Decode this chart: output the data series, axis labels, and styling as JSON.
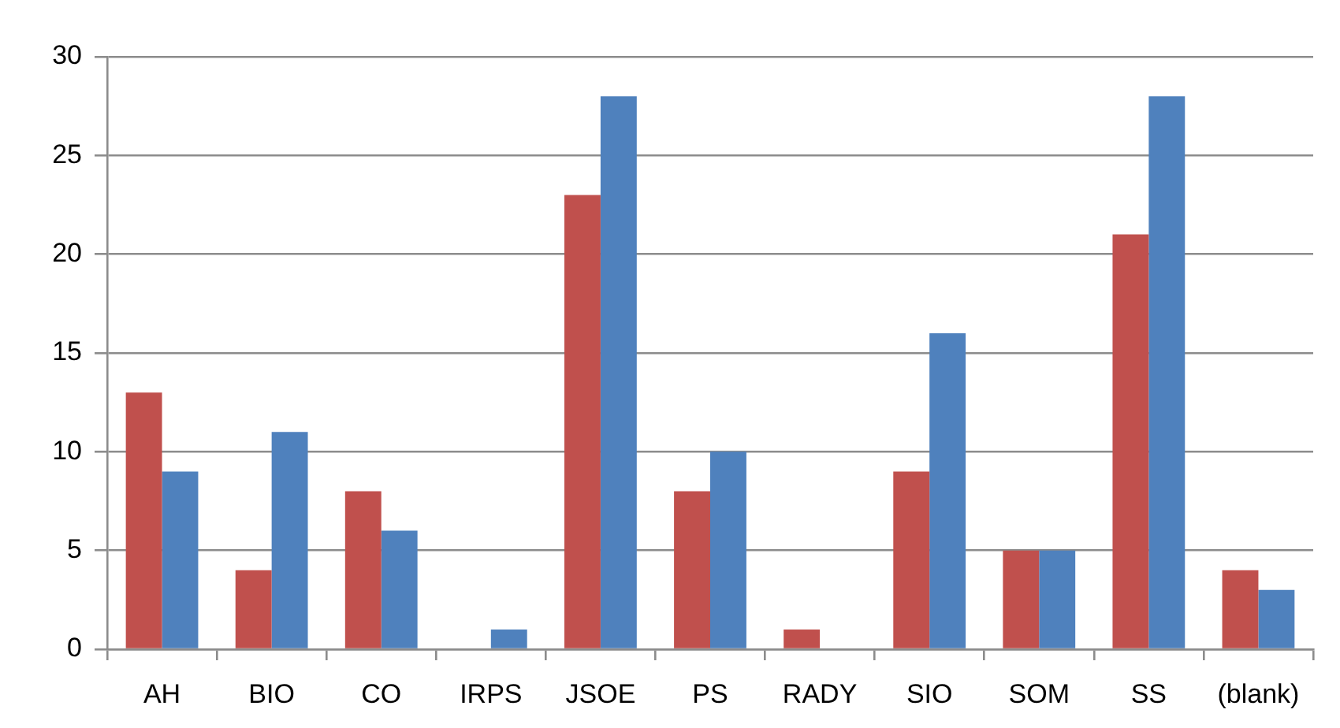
{
  "chart_data": {
    "type": "bar",
    "categories": [
      "AH",
      "BIO",
      "CO",
      "IRPS",
      "JSOE",
      "PS",
      "RADY",
      "SIO",
      "SOM",
      "SS",
      "(blank)"
    ],
    "series": [
      {
        "color": "#c0504d",
        "values": [
          13,
          4,
          8,
          null,
          23,
          8,
          1,
          9,
          5,
          21,
          4
        ]
      },
      {
        "color": "#4f81bd",
        "values": [
          9,
          11,
          6,
          1,
          28,
          10,
          null,
          16,
          5,
          28,
          3
        ]
      }
    ],
    "ylim": [
      0,
      30
    ],
    "yticks": [
      0,
      5,
      10,
      15,
      20,
      25,
      30
    ],
    "grid": "y"
  }
}
